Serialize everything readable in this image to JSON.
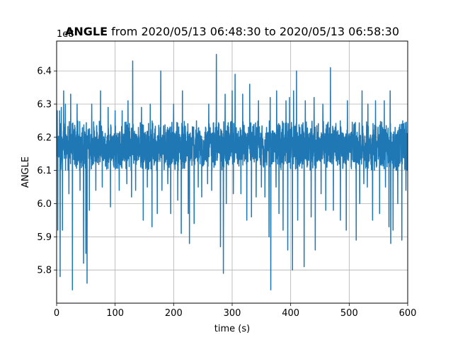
{
  "chart_data": {
    "type": "line",
    "title_bold": "ANGLE",
    "title_rest": " from 2020/05/13 06:48:30 to 2020/05/13 06:58:30",
    "offset_label": "1e8",
    "xlabel": "time (s)",
    "ylabel": "ANGLE",
    "xlim": [
      0,
      600
    ],
    "ylim": [
      5.7,
      6.49
    ],
    "xticks": [
      0,
      100,
      200,
      300,
      400,
      500,
      600
    ],
    "xtick_labels": [
      "0",
      "100",
      "200",
      "300",
      "400",
      "500",
      "600"
    ],
    "yticks": [
      5.8,
      5.9,
      6.0,
      6.1,
      6.2,
      6.3,
      6.4
    ],
    "ytick_labels": [
      "5.8",
      "5.9",
      "6.0",
      "6.1",
      "6.2",
      "6.3",
      "6.4"
    ],
    "grid": true,
    "line_color": "#1f77b4",
    "baseline": 6.17,
    "band_low": 6.1,
    "band_high": 6.25,
    "peaks": [
      [
        1,
        6.28
      ],
      [
        5,
        6.28
      ],
      [
        8,
        6.29
      ],
      [
        12,
        6.34
      ],
      [
        15,
        6.3
      ],
      [
        24,
        6.33
      ],
      [
        35,
        6.3
      ],
      [
        52,
        6.32
      ],
      [
        60,
        6.3
      ],
      [
        75,
        6.34
      ],
      [
        88,
        6.29
      ],
      [
        100,
        6.28
      ],
      [
        112,
        6.28
      ],
      [
        122,
        6.31
      ],
      [
        130,
        6.43
      ],
      [
        145,
        6.29
      ],
      [
        160,
        6.3
      ],
      [
        172,
        6.34
      ],
      [
        178,
        6.4
      ],
      [
        190,
        6.3
      ],
      [
        200,
        6.3
      ],
      [
        215,
        6.34
      ],
      [
        235,
        6.31
      ],
      [
        248,
        6.28
      ],
      [
        260,
        6.3
      ],
      [
        273,
        6.45
      ],
      [
        288,
        6.33
      ],
      [
        300,
        6.34
      ],
      [
        305,
        6.39
      ],
      [
        318,
        6.33
      ],
      [
        330,
        6.36
      ],
      [
        345,
        6.31
      ],
      [
        365,
        6.32
      ],
      [
        376,
        6.34
      ],
      [
        392,
        6.31
      ],
      [
        398,
        6.32
      ],
      [
        405,
        6.34
      ],
      [
        410,
        6.4
      ],
      [
        425,
        6.31
      ],
      [
        440,
        6.32
      ],
      [
        455,
        6.3
      ],
      [
        468,
        6.41
      ],
      [
        485,
        6.34
      ],
      [
        497,
        6.31
      ],
      [
        512,
        6.33
      ],
      [
        522,
        6.34
      ],
      [
        532,
        6.3
      ],
      [
        545,
        6.31
      ],
      [
        560,
        6.31
      ],
      [
        570,
        6.34
      ],
      [
        575,
        6.28
      ]
    ],
    "troughs": [
      [
        2,
        5.92
      ],
      [
        6,
        5.78
      ],
      [
        10,
        5.92
      ],
      [
        21,
        6.03
      ],
      [
        27,
        5.74
      ],
      [
        40,
        6.04
      ],
      [
        46,
        5.82
      ],
      [
        50,
        5.85
      ],
      [
        52,
        5.76
      ],
      [
        56,
        5.98
      ],
      [
        67,
        6.04
      ],
      [
        78,
        6.05
      ],
      [
        92,
        5.99
      ],
      [
        107,
        6.04
      ],
      [
        120,
        6.06
      ],
      [
        128,
        6.02
      ],
      [
        135,
        6.04
      ],
      [
        148,
        5.95
      ],
      [
        155,
        6.05
      ],
      [
        163,
        5.93
      ],
      [
        172,
        5.97
      ],
      [
        180,
        6.04
      ],
      [
        190,
        6.06
      ],
      [
        195,
        5.97
      ],
      [
        207,
        6.01
      ],
      [
        213,
        5.91
      ],
      [
        225,
        5.97
      ],
      [
        227,
        5.88
      ],
      [
        235,
        5.94
      ],
      [
        242,
        6.05
      ],
      [
        248,
        6.02
      ],
      [
        258,
        6.06
      ],
      [
        265,
        6.04
      ],
      [
        280,
        5.87
      ],
      [
        285,
        5.79
      ],
      [
        290,
        6.0
      ],
      [
        302,
        6.03
      ],
      [
        315,
        6.03
      ],
      [
        325,
        5.95
      ],
      [
        333,
        5.96
      ],
      [
        341,
        6.02
      ],
      [
        350,
        6.05
      ],
      [
        356,
        6.02
      ],
      [
        363,
        5.9
      ],
      [
        366,
        5.74
      ],
      [
        375,
        6.05
      ],
      [
        380,
        5.97
      ],
      [
        387,
        5.92
      ],
      [
        395,
        5.86
      ],
      [
        403,
        5.8
      ],
      [
        412,
        5.95
      ],
      [
        423,
        5.81
      ],
      [
        435,
        5.96
      ],
      [
        442,
        5.86
      ],
      [
        452,
        6.03
      ],
      [
        460,
        5.98
      ],
      [
        473,
        5.98
      ],
      [
        485,
        5.95
      ],
      [
        495,
        5.92
      ],
      [
        512,
        5.89
      ],
      [
        518,
        6.0
      ],
      [
        525,
        6.06
      ],
      [
        531,
        6.05
      ],
      [
        540,
        5.95
      ],
      [
        552,
        5.97
      ],
      [
        562,
        6.05
      ],
      [
        568,
        5.93
      ],
      [
        571,
        5.88
      ],
      [
        575,
        5.92
      ],
      [
        583,
        6.0
      ],
      [
        590,
        5.89
      ],
      [
        597,
        6.04
      ]
    ]
  }
}
